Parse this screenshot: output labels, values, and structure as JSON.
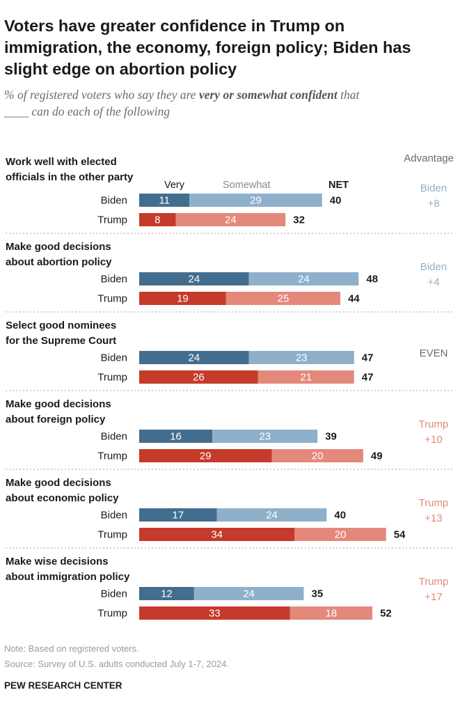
{
  "title_lines": [
    "Voters have greater confidence in Trump on",
    "immigration, the economy, foreign policy; Biden has",
    "slight edge on abortion policy"
  ],
  "subtitle": {
    "line1_pre": "% of registered voters who say they are ",
    "line1_em": "very or somewhat confident",
    "line1_post": " that",
    "line2": "____ can do each of the following"
  },
  "legend": {
    "very": "Very",
    "somewhat": "Somewhat",
    "net": "NET",
    "advantage": "Advantage"
  },
  "colors": {
    "biden_very": "#436d8e",
    "biden_somewhat": "#8fb0cb",
    "trump_very": "#c53a2a",
    "trump_somewhat": "#e5887c",
    "biden_adv": "#8fb0cb",
    "trump_adv": "#e5887c",
    "even_adv": "#6b6b6b"
  },
  "chart_data": {
    "type": "bar",
    "orientation": "horizontal",
    "stacked": true,
    "title": "Voters have greater confidence in Trump on immigration, the economy, foreign policy; Biden has slight edge on abortion policy",
    "series_names": [
      "Very",
      "Somewhat"
    ],
    "xlim": [
      0,
      60
    ],
    "categories": [
      {
        "label_lines": [
          "Work well with elected",
          "officials in the other party"
        ],
        "rows": [
          {
            "name": "Biden",
            "very": 11,
            "somewhat": 29,
            "net": 40
          },
          {
            "name": "Trump",
            "very": 8,
            "somewhat": 24,
            "net": 32
          }
        ],
        "advantage": {
          "party": "biden",
          "lines": [
            "Biden",
            "+8"
          ]
        }
      },
      {
        "label_lines": [
          "Make good decisions",
          "about abortion policy"
        ],
        "rows": [
          {
            "name": "Biden",
            "very": 24,
            "somewhat": 24,
            "net": 48
          },
          {
            "name": "Trump",
            "very": 19,
            "somewhat": 25,
            "net": 44
          }
        ],
        "advantage": {
          "party": "biden",
          "lines": [
            "Biden",
            "+4"
          ]
        }
      },
      {
        "label_lines": [
          "Select good nominees",
          "for the Supreme Court"
        ],
        "rows": [
          {
            "name": "Biden",
            "very": 24,
            "somewhat": 23,
            "net": 47
          },
          {
            "name": "Trump",
            "very": 26,
            "somewhat": 21,
            "net": 47
          }
        ],
        "advantage": {
          "party": "even",
          "lines": [
            "EVEN"
          ]
        }
      },
      {
        "label_lines": [
          "Make good decisions",
          "about foreign policy"
        ],
        "rows": [
          {
            "name": "Biden",
            "very": 16,
            "somewhat": 23,
            "net": 39
          },
          {
            "name": "Trump",
            "very": 29,
            "somewhat": 20,
            "net": 49
          }
        ],
        "advantage": {
          "party": "trump",
          "lines": [
            "Trump",
            "+10"
          ]
        }
      },
      {
        "label_lines": [
          "Make good decisions",
          "about economic policy"
        ],
        "rows": [
          {
            "name": "Biden",
            "very": 17,
            "somewhat": 24,
            "net": 40
          },
          {
            "name": "Trump",
            "very": 34,
            "somewhat": 20,
            "net": 54
          }
        ],
        "advantage": {
          "party": "trump",
          "lines": [
            "Trump",
            "+13"
          ]
        }
      },
      {
        "label_lines": [
          "Make wise decisions",
          "about immigration policy"
        ],
        "rows": [
          {
            "name": "Biden",
            "very": 12,
            "somewhat": 24,
            "net": 35
          },
          {
            "name": "Trump",
            "very": 33,
            "somewhat": 18,
            "net": 52
          }
        ],
        "advantage": {
          "party": "trump",
          "lines": [
            "Trump",
            "+17"
          ]
        }
      }
    ]
  },
  "notes": {
    "note": "Note: Based on registered voters.",
    "source": "Source: Survey of U.S. adults conducted July 1-7, 2024.",
    "brand": "PEW RESEARCH CENTER"
  }
}
